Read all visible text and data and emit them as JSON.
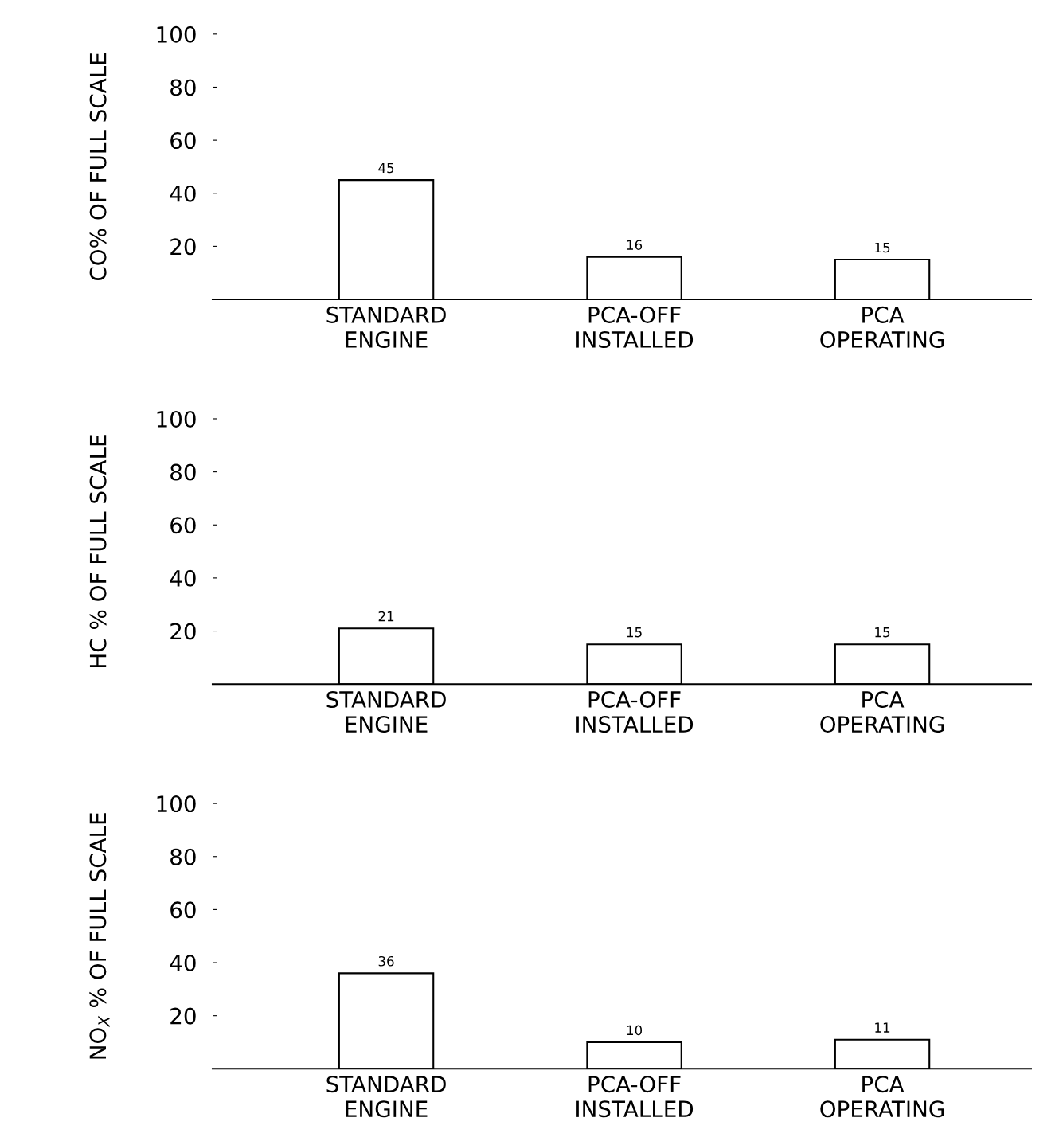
{
  "chart_data": [
    {
      "type": "bar",
      "ylabel": "CO% OF FULL SCALE",
      "categories": [
        "STANDARD\nENGINE",
        "PCA-OFF\nINSTALLED",
        "PCA\nOPERATING"
      ],
      "values": [
        45,
        16,
        15
      ],
      "color": "#ffffff",
      "ylim": [
        0,
        100
      ],
      "yticks": [
        20,
        40,
        60,
        80,
        100
      ],
      "data_labels": true,
      "grid": false
    },
    {
      "type": "bar",
      "ylabel": "HC % OF FULL SCALE",
      "categories": [
        "STANDARD\nENGINE",
        "PCA-OFF\nINSTALLED",
        "PCA\nOPERATING"
      ],
      "values": [
        21,
        15,
        15
      ],
      "color": "#ffffff",
      "ylim": [
        0,
        100
      ],
      "yticks": [
        20,
        40,
        60,
        80,
        100
      ],
      "data_labels": true,
      "grid": false
    },
    {
      "type": "bar",
      "ylabel": "NO$_{X}$ % OF FULL SCALE",
      "categories": [
        "STANDARD\nENGINE",
        "PCA-OFF\nINSTALLED",
        "PCA\nOPERATING"
      ],
      "values": [
        36,
        10,
        11
      ],
      "color": "#ffffff",
      "ylim": [
        0,
        100
      ],
      "yticks": [
        20,
        40,
        60,
        80,
        100
      ],
      "data_labels": true,
      "grid": false
    }
  ]
}
